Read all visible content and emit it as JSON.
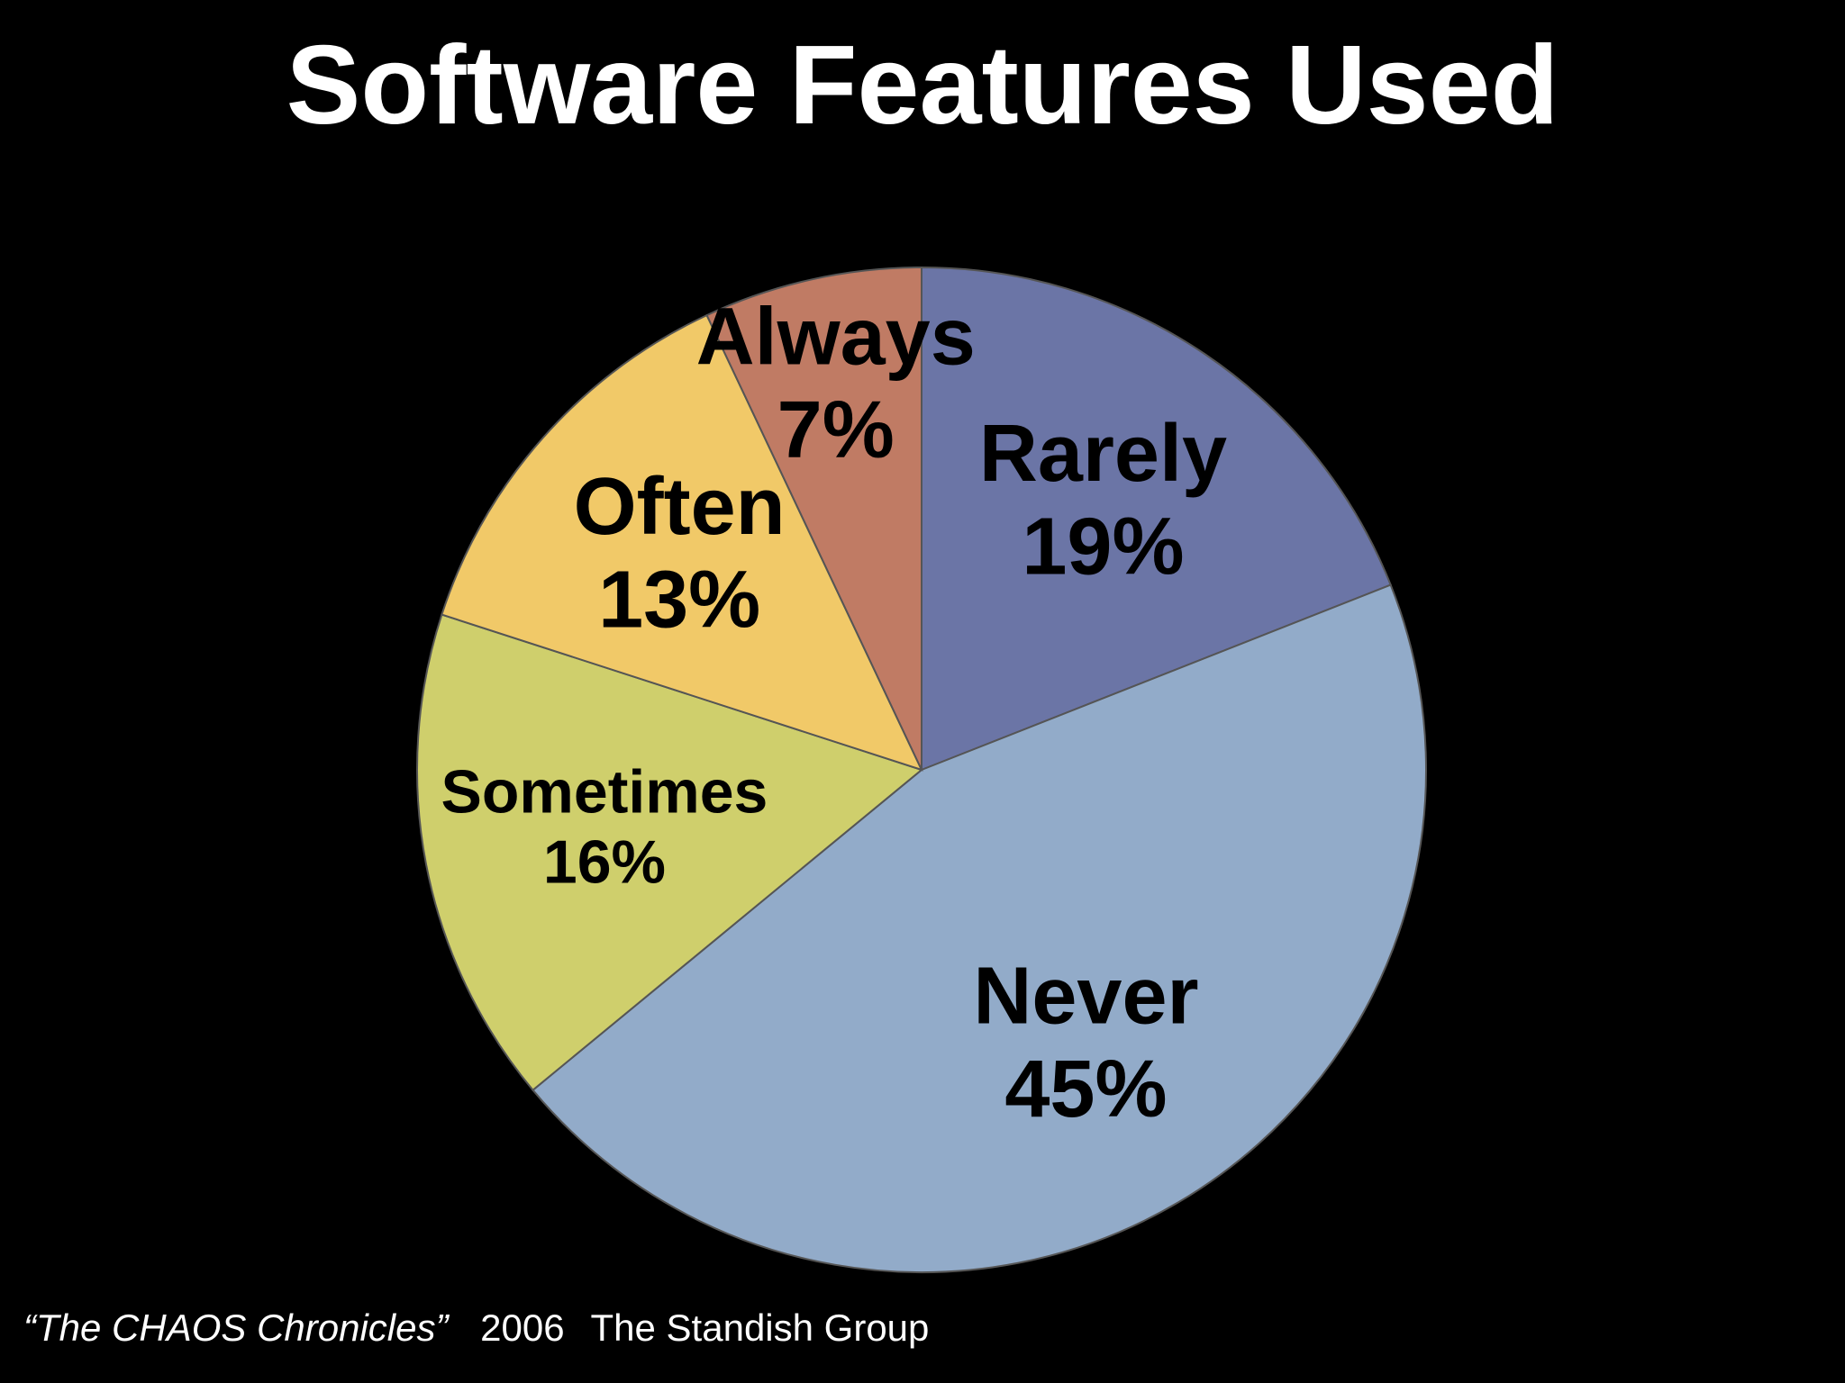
{
  "chart_data": {
    "type": "pie",
    "title": "Software Features Used",
    "categories": [
      "Rarely",
      "Never",
      "Sometimes",
      "Often",
      "Always"
    ],
    "values": [
      19,
      45,
      16,
      13,
      7
    ],
    "value_labels": [
      "19%",
      "45%",
      "16%",
      "13%",
      "7%"
    ],
    "colors": [
      "#6b75a6",
      "#92abc9",
      "#cfcf6c",
      "#f1c968",
      "#c07b64"
    ]
  },
  "source": {
    "work": "“The CHAOS Chronicles”",
    "year": "2006",
    "publisher": "The Standish Group"
  }
}
